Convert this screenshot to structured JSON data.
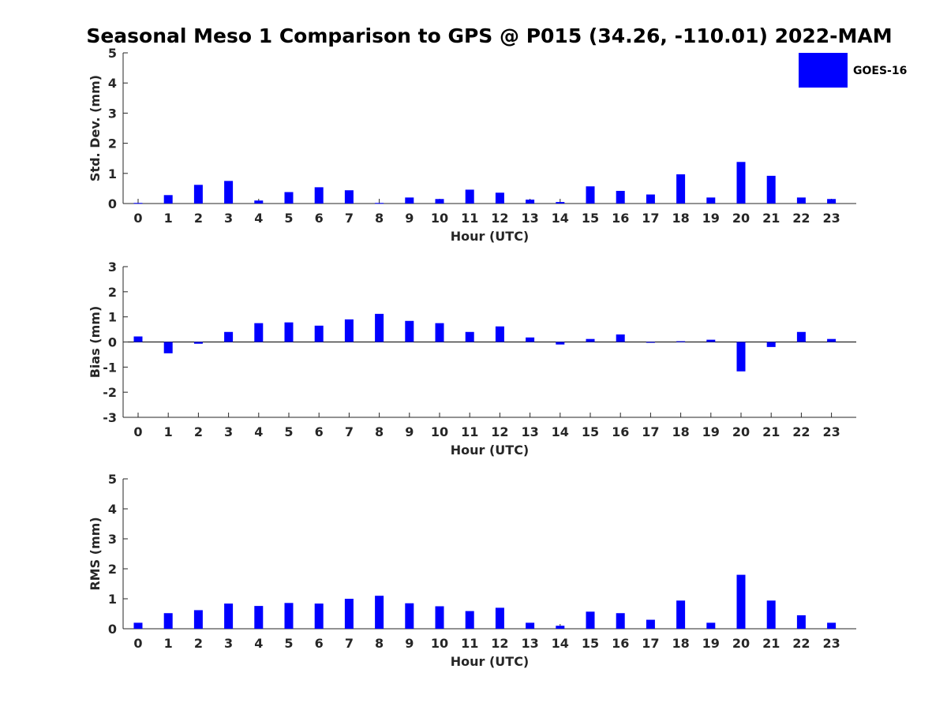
{
  "chart_data": [
    {
      "type": "bar",
      "title": "Seasonal Meso 1 Comparison to GPS @ P015 (34.26, -110.01) 2022-MAM",
      "xlabel": "Hour (UTC)",
      "ylabel": "Std. Dev. (mm)",
      "ylim": [
        0,
        5
      ],
      "yticks": [
        0,
        1,
        2,
        3,
        4,
        5
      ],
      "categories": [
        "0",
        "1",
        "2",
        "3",
        "4",
        "5",
        "6",
        "7",
        "8",
        "9",
        "10",
        "11",
        "12",
        "13",
        "14",
        "15",
        "16",
        "17",
        "18",
        "19",
        "20",
        "21",
        "22",
        "23"
      ],
      "series": [
        {
          "name": "GOES-16",
          "values": [
            0.02,
            0.28,
            0.62,
            0.75,
            0.1,
            0.38,
            0.54,
            0.44,
            0.02,
            0.2,
            0.15,
            0.46,
            0.36,
            0.13,
            0.05,
            0.57,
            0.42,
            0.3,
            0.97,
            0.2,
            1.38,
            0.92,
            0.2,
            0.15
          ]
        }
      ],
      "legend": [
        "GOES-16"
      ],
      "legend_position": "top-right"
    },
    {
      "type": "bar",
      "xlabel": "Hour (UTC)",
      "ylabel": "Bias (mm)",
      "ylim": [
        -3,
        3
      ],
      "yticks": [
        -3,
        -2,
        -1,
        0,
        1,
        2,
        3
      ],
      "categories": [
        "0",
        "1",
        "2",
        "3",
        "4",
        "5",
        "6",
        "7",
        "8",
        "9",
        "10",
        "11",
        "12",
        "13",
        "14",
        "15",
        "16",
        "17",
        "18",
        "19",
        "20",
        "21",
        "22",
        "23"
      ],
      "series": [
        {
          "name": "GOES-16",
          "values": [
            0.22,
            -0.45,
            -0.07,
            0.4,
            0.75,
            0.78,
            0.65,
            0.9,
            1.12,
            0.84,
            0.75,
            0.4,
            0.62,
            0.18,
            -0.1,
            0.12,
            0.3,
            -0.02,
            0.03,
            0.09,
            -1.17,
            -0.2,
            0.4,
            0.12
          ]
        }
      ]
    },
    {
      "type": "bar",
      "xlabel": "Hour (UTC)",
      "ylabel": "RMS (mm)",
      "ylim": [
        0,
        5
      ],
      "yticks": [
        0,
        1,
        2,
        3,
        4,
        5
      ],
      "categories": [
        "0",
        "1",
        "2",
        "3",
        "4",
        "5",
        "6",
        "7",
        "8",
        "9",
        "10",
        "11",
        "12",
        "13",
        "14",
        "15",
        "16",
        "17",
        "18",
        "19",
        "20",
        "21",
        "22",
        "23"
      ],
      "series": [
        {
          "name": "GOES-16",
          "values": [
            0.2,
            0.52,
            0.62,
            0.84,
            0.76,
            0.86,
            0.84,
            1.0,
            1.1,
            0.85,
            0.75,
            0.59,
            0.7,
            0.2,
            0.1,
            0.57,
            0.52,
            0.3,
            0.94,
            0.2,
            1.8,
            0.94,
            0.45,
            0.2
          ]
        }
      ]
    }
  ],
  "colors": {
    "bar": "#0000ff",
    "axis": "#262626"
  }
}
